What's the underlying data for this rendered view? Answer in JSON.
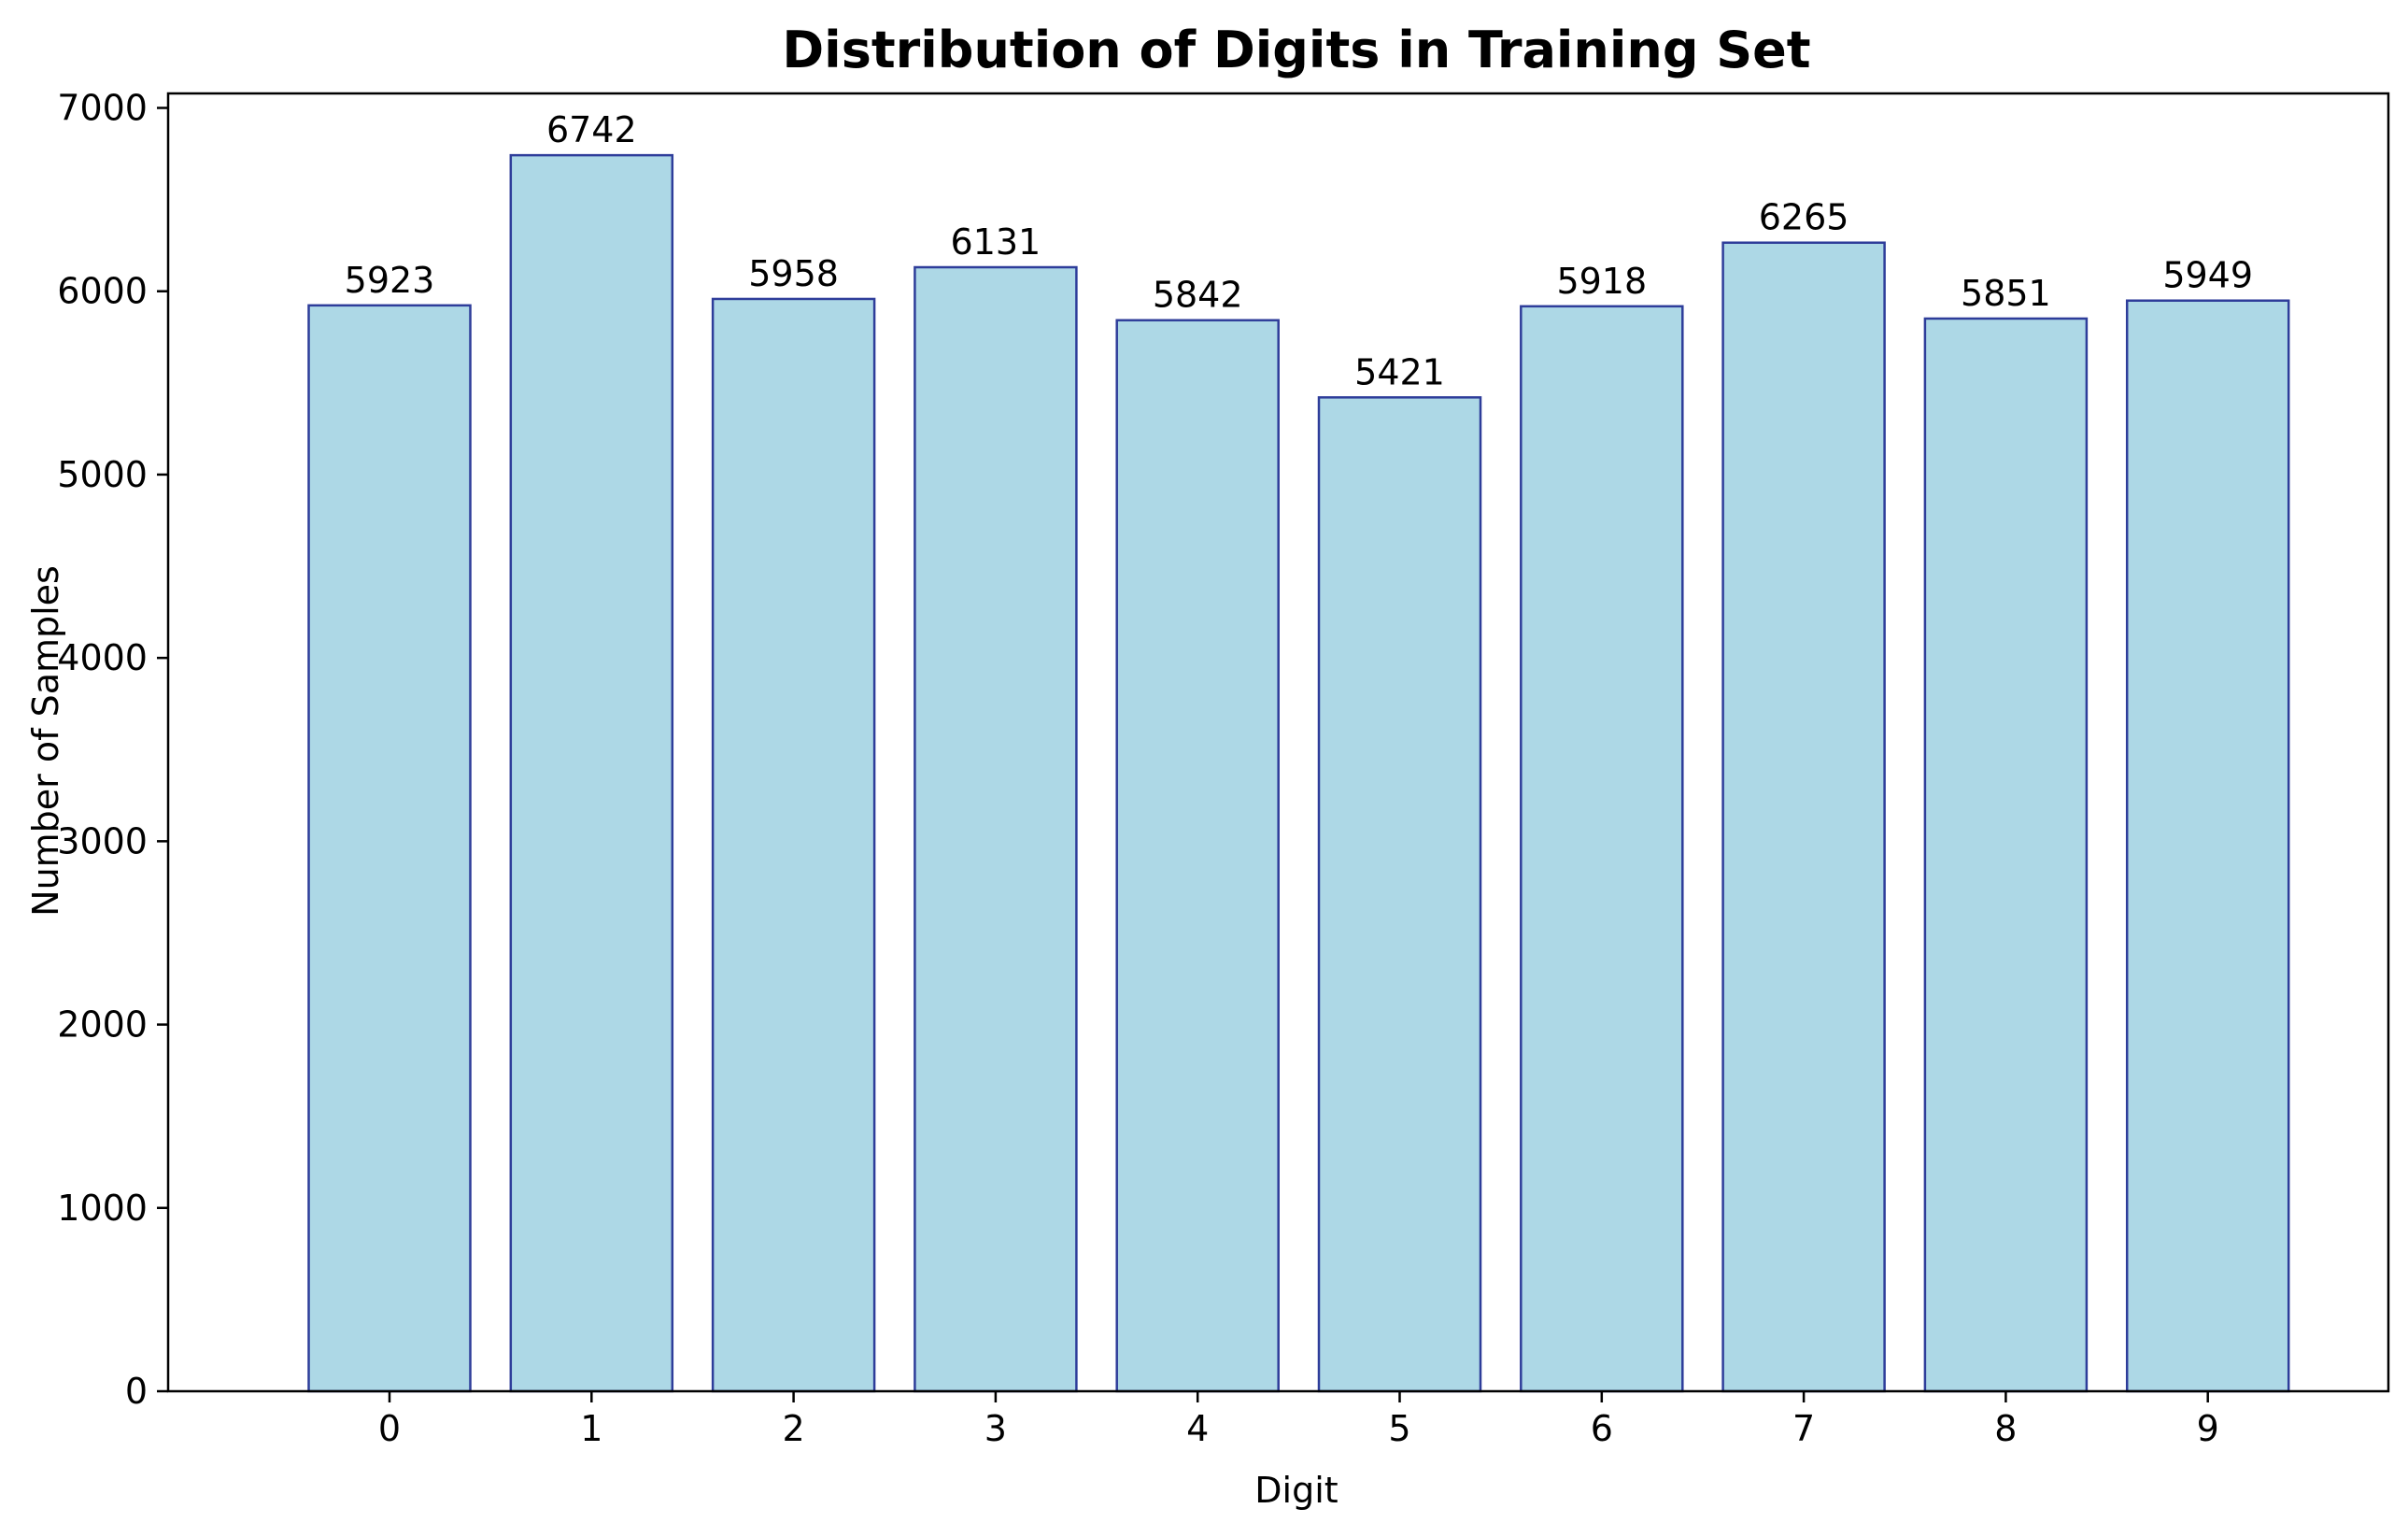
{
  "chart_data": {
    "type": "bar",
    "title": "Distribution of Digits in Training Set",
    "xlabel": "Digit",
    "ylabel": "Number of Samples",
    "categories": [
      "0",
      "1",
      "2",
      "3",
      "4",
      "5",
      "6",
      "7",
      "8",
      "9"
    ],
    "values": [
      5923,
      6742,
      5958,
      6131,
      5842,
      5421,
      5918,
      6265,
      5851,
      5949
    ],
    "data_labels": [
      "5923",
      "6742",
      "5958",
      "6131",
      "5842",
      "5421",
      "5918",
      "6265",
      "5851",
      "5949"
    ],
    "ylim": [
      0,
      7079
    ],
    "yticks": [
      0,
      1000,
      2000,
      3000,
      4000,
      5000,
      6000,
      7000
    ],
    "ytick_labels": [
      "0",
      "1000",
      "2000",
      "3000",
      "4000",
      "5000",
      "6000",
      "7000"
    ],
    "grid": false,
    "legend": "none",
    "colors": {
      "bar_fill": "#add8e6",
      "bar_edge": "#2e3d9a",
      "axis": "#000000"
    }
  }
}
